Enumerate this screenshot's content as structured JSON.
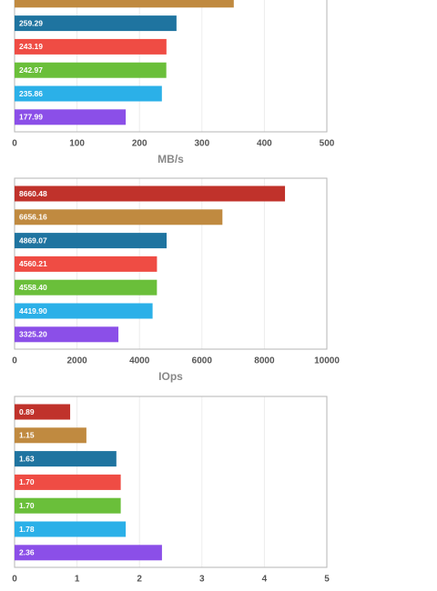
{
  "chart_data": [
    {
      "type": "bar",
      "orientation": "horizontal",
      "values": [
        351,
        259.29,
        243.19,
        242.97,
        235.86,
        177.99
      ],
      "value_labels": [
        null,
        "259.29",
        "243.19",
        "242.97",
        "235.86",
        "177.99"
      ],
      "colors": [
        "#c08a40",
        "#1f74a0",
        "#ef4c44",
        "#6abf3a",
        "#2bb0e8",
        "#8b4fe8"
      ],
      "xlim": [
        0,
        500
      ],
      "xticks": [
        0,
        100,
        200,
        300,
        400,
        500
      ],
      "xlabel": "MB/s",
      "grid": true
    },
    {
      "type": "bar",
      "orientation": "horizontal",
      "values": [
        8660.48,
        6656.16,
        4869.07,
        4560.21,
        4558.4,
        4419.9,
        3325.2
      ],
      "value_labels": [
        "8660.48",
        "6656.16",
        "4869.07",
        "4560.21",
        "4558.40",
        "4419.90",
        "3325.20"
      ],
      "colors": [
        "#c0322b",
        "#c08a40",
        "#1f74a0",
        "#ef4c44",
        "#6abf3a",
        "#2bb0e8",
        "#8b4fe8"
      ],
      "xlim": [
        0,
        10000
      ],
      "xticks": [
        0,
        2000,
        4000,
        6000,
        8000,
        10000
      ],
      "xlabel": "IOps",
      "grid": true
    },
    {
      "type": "bar",
      "orientation": "horizontal",
      "values": [
        0.89,
        1.15,
        1.63,
        1.7,
        1.7,
        1.78,
        2.36
      ],
      "value_labels": [
        "0.89",
        "1.15",
        "1.63",
        "1.70",
        "1.70",
        "1.78",
        "2.36"
      ],
      "colors": [
        "#c0322b",
        "#c08a40",
        "#1f74a0",
        "#ef4c44",
        "#6abf3a",
        "#2bb0e8",
        "#8b4fe8"
      ],
      "xlim": [
        0,
        5
      ],
      "xticks": [
        0,
        1,
        2,
        3,
        4,
        5
      ],
      "grid": true
    }
  ]
}
